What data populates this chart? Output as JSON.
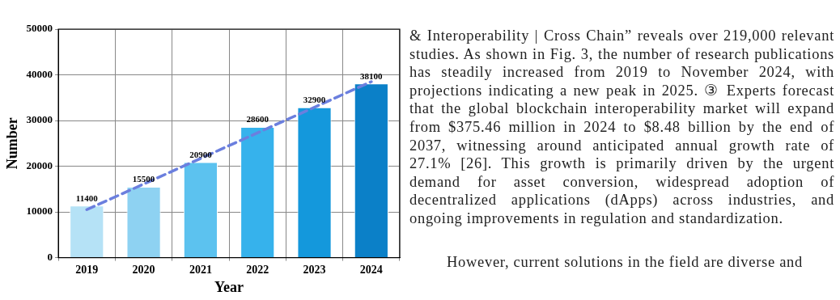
{
  "chart_data": {
    "type": "bar",
    "xlabel": "Year",
    "ylabel": "Number",
    "categories": [
      "2019",
      "2020",
      "2021",
      "2022",
      "2023",
      "2024"
    ],
    "series": [
      {
        "colors": [
          "#b5e2f6",
          "#8ed2f2",
          "#5cc2ef",
          "#36b2ec",
          "#1498dc",
          "#0b80c8"
        ],
        "values": [
          11400,
          15500,
          20900,
          28600,
          32900,
          38100
        ],
        "value_labels": [
          "11400",
          "15500",
          "20900",
          "28600",
          "32900",
          "38100"
        ]
      },
      {
        "type": "line",
        "color": "#6b7fde",
        "values": [
          10500,
          null,
          null,
          null,
          null,
          38500
        ],
        "line_style": "dashed"
      }
    ],
    "ylim": [
      0,
      50000
    ],
    "yticks": [
      0,
      10000,
      20000,
      30000,
      40000,
      50000
    ],
    "grid": true,
    "annotations": [
      "& Interoperability | Cross Chain” reveals over 219,000 relevant studies. As shown in Fig. 3, the number of research publications has steadily increased from 2019 to November 2024, with projections indicating a new peak in 2025. ③ Experts forecast that the global blockchain interoperability market will expand from $375.46 million in 2024 to $8.48 billion by the end of 2037, witnessing around anticipated annual growth rate of 27.1% [26]. This growth is primarily driven by the urgent demand for asset conversion, widespread adoption of decentralized applications (dApps) across industries, and ongoing improvements in regulation and standardization.",
      "However, current solutions in the field are diverse and"
    ]
  }
}
